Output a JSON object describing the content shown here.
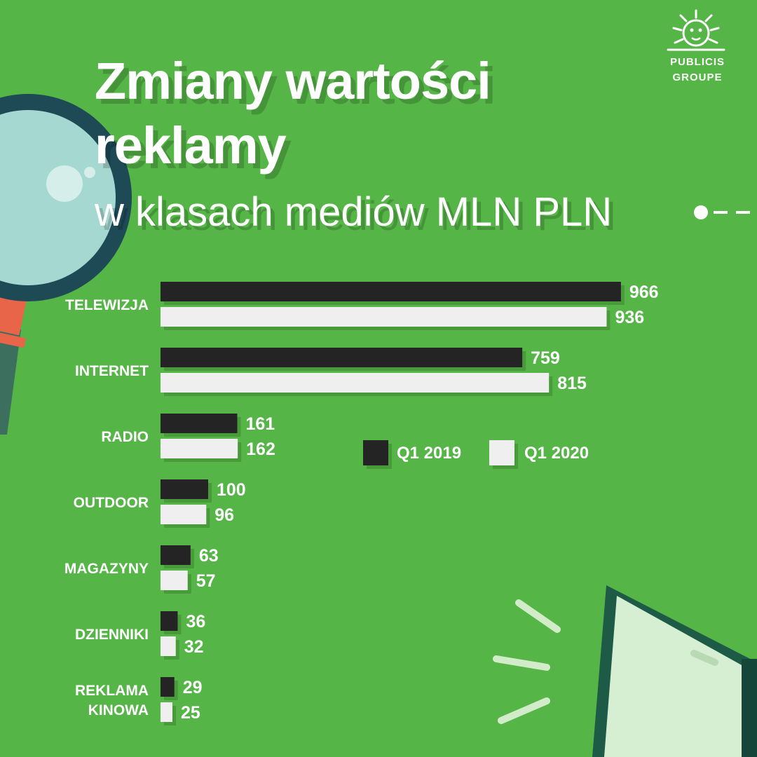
{
  "header": {
    "title_line1": "Zmiany wartości",
    "title_line2": "reklamy",
    "subtitle": "w klasach mediów MLN PLN"
  },
  "logo": {
    "line1": "PUBLICIS",
    "line2": "GROUPE"
  },
  "colors": {
    "background": "#55b546",
    "series_2019": "#242424",
    "series_2020": "#efefef",
    "label": "#ffffff"
  },
  "legend": {
    "items": [
      {
        "label": "Q1 2019",
        "color": "#242424"
      },
      {
        "label": "Q1 2020",
        "color": "#efefef"
      }
    ]
  },
  "chart_data": {
    "type": "bar",
    "orientation": "horizontal",
    "title": "Zmiany wartości reklamy",
    "subtitle": "w klasach mediów MLN PLN",
    "unit": "MLN PLN",
    "categories": [
      "TELEWIZJA",
      "INTERNET",
      "RADIO",
      "OUTDOOR",
      "MAGAZYNY",
      "DZIENNIKI",
      "REKLAMA KINOWA"
    ],
    "category_lines": [
      [
        "TELEWIZJA"
      ],
      [
        "INTERNET"
      ],
      [
        "RADIO"
      ],
      [
        "OUTDOOR"
      ],
      [
        "MAGAZYNY"
      ],
      [
        "DZIENNIKI"
      ],
      [
        "REKLAMA",
        "KINOWA"
      ]
    ],
    "series": [
      {
        "name": "Q1 2019",
        "values": [
          966,
          759,
          161,
          100,
          63,
          36,
          29
        ]
      },
      {
        "name": "Q1 2020",
        "values": [
          936,
          815,
          162,
          96,
          57,
          32,
          25
        ]
      }
    ],
    "data_labels": true,
    "axis_visible": false,
    "grid": false,
    "legend": "right"
  }
}
